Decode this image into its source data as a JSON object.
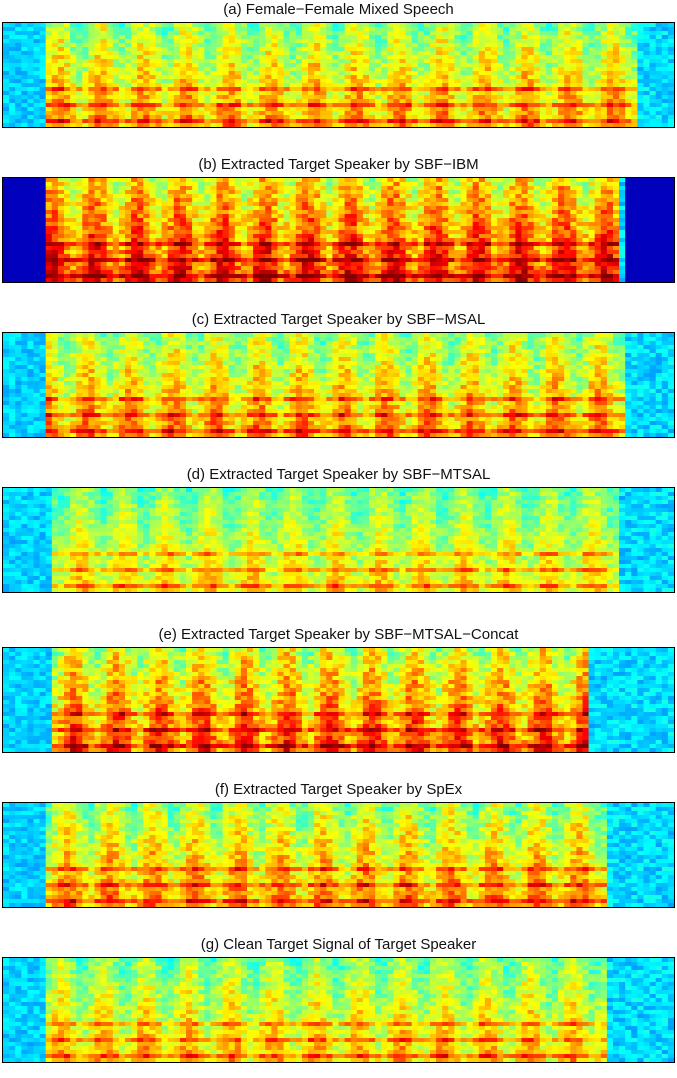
{
  "figure": {
    "type": "spectrogram-comparison",
    "colormap": "jet"
  },
  "panels": [
    {
      "title": "(a) Female−Female Mixed Speech"
    },
    {
      "title": "(b) Extracted Target Speaker by SBF−IBM"
    },
    {
      "title": "(c) Extracted Target Speaker by SBF−MSAL"
    },
    {
      "title": "(d) Extracted Target Speaker by SBF−MTSAL"
    },
    {
      "title": "(e) Extracted Target Speaker by SBF−MTSAL−Concat"
    },
    {
      "title": "(f) Extracted Target Speaker by SpEx"
    },
    {
      "title": "(g) Clean Target Signal of Target Speaker"
    }
  ],
  "chart_data": [
    {
      "type": "heatmap",
      "title": "(a) Female−Female Mixed Speech",
      "colormap": "jet",
      "axes_visible": false
    },
    {
      "type": "heatmap",
      "title": "(b) Extracted Target Speaker by SBF−IBM",
      "colormap": "jet",
      "axes_visible": false
    },
    {
      "type": "heatmap",
      "title": "(c) Extracted Target Speaker by SBF−MSAL",
      "colormap": "jet",
      "axes_visible": false
    },
    {
      "type": "heatmap",
      "title": "(d) Extracted Target Speaker by SBF−MTSAL",
      "colormap": "jet",
      "axes_visible": false
    },
    {
      "type": "heatmap",
      "title": "(e) Extracted Target Speaker by SBF−MTSAL−Concat",
      "colormap": "jet",
      "axes_visible": false
    },
    {
      "type": "heatmap",
      "title": "(f) Extracted Target Speaker by SpEx",
      "colormap": "jet",
      "axes_visible": false
    },
    {
      "type": "heatmap",
      "title": "(g) Clean Target Signal of Target Speaker",
      "colormap": "jet",
      "axes_visible": false
    }
  ]
}
